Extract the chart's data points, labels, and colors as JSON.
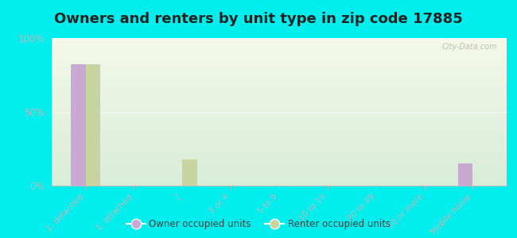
{
  "title": "Owners and renters by unit type in zip code 17885",
  "categories": [
    "1, detached",
    "1, attached",
    "2",
    "3 or 4",
    "5 to 9",
    "10 to 19",
    "20 to 49",
    "50 or more",
    "Mobile home"
  ],
  "owner_values": [
    82,
    0,
    0,
    0,
    0,
    0,
    0,
    0,
    15
  ],
  "renter_values": [
    82,
    0,
    18,
    0,
    0,
    0,
    0,
    0,
    0
  ],
  "owner_color": "#c9a8d4",
  "renter_color": "#c8d4a0",
  "background_color": "#00eeee",
  "plot_bg_top": "#f5f8e8",
  "plot_bg_bottom": "#d8edd8",
  "yticks": [
    0,
    50,
    100
  ],
  "ylim": [
    0,
    100
  ],
  "bar_width": 0.3,
  "title_fontsize": 13,
  "watermark": "City-Data.com"
}
